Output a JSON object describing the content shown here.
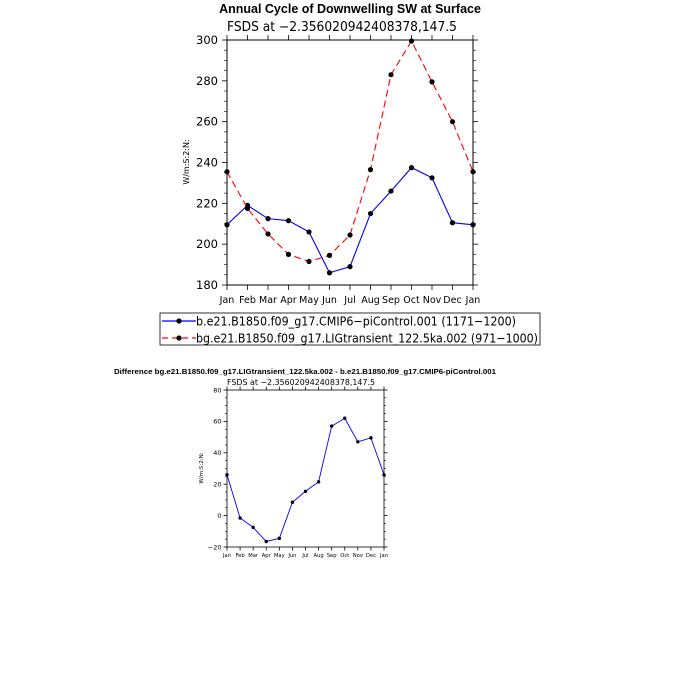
{
  "chart_data": [
    {
      "type": "line",
      "title": "Annual Cycle of Downwelling SW at Surface",
      "subtitle": "FSDS at −2.356020942408378,147.5",
      "ylabel": "W/m:S:2:N:",
      "xlabel": "",
      "categories": [
        "Jan",
        "Feb",
        "Mar",
        "Apr",
        "May",
        "Jun",
        "Jul",
        "Aug",
        "Sep",
        "Oct",
        "Nov",
        "Dec",
        "Jan"
      ],
      "ylim": [
        180,
        300
      ],
      "yticks": [
        180,
        200,
        220,
        240,
        260,
        280,
        300
      ],
      "grid": false,
      "legend_position": "bottom",
      "series": [
        {
          "name": "b.e21.B1850.f09_g17.CMIP6−piControl.001 (1171−1200)",
          "color": "#0000ff",
          "style": "solid",
          "values": [
            209.5,
            219,
            212.5,
            211.5,
            206,
            186,
            189,
            215,
            226,
            237.5,
            232.5,
            210.5,
            209.5
          ]
        },
        {
          "name": "bg.e21.B1850.f09_g17.LIGtransient_122.5ka.002 (971−1000)",
          "color": "#ff0000",
          "style": "dashed",
          "values": [
            235.5,
            217.5,
            205,
            195,
            191.5,
            194.5,
            204.5,
            236.5,
            283,
            299.5,
            279.5,
            260,
            235.5
          ]
        }
      ]
    },
    {
      "type": "line",
      "title": "Difference bg.e21.B1850.f09_g17.LIGtransient_122.5ka.002 - b.e21.B1850.f09_g17.CMIP6-piControl.001",
      "subtitle": "FSDS at −2.356020942408378,147.5",
      "ylabel": "W/m:S:2:N:",
      "xlabel": "",
      "categories": [
        "Jan",
        "Feb",
        "Mar",
        "Apr",
        "May",
        "Jun",
        "Jul",
        "Aug",
        "Sep",
        "Oct",
        "Nov",
        "Dec",
        "Jan"
      ],
      "ylim": [
        -20,
        80
      ],
      "yticks": [
        -20,
        0,
        20,
        40,
        60,
        80
      ],
      "grid": false,
      "series": [
        {
          "color": "#0000ff",
          "style": "solid",
          "values": [
            26,
            -1.5,
            -7.5,
            -16.5,
            -14.5,
            8.5,
            15.5,
            21.5,
            57,
            62,
            47,
            49.5,
            26
          ]
        }
      ]
    }
  ]
}
